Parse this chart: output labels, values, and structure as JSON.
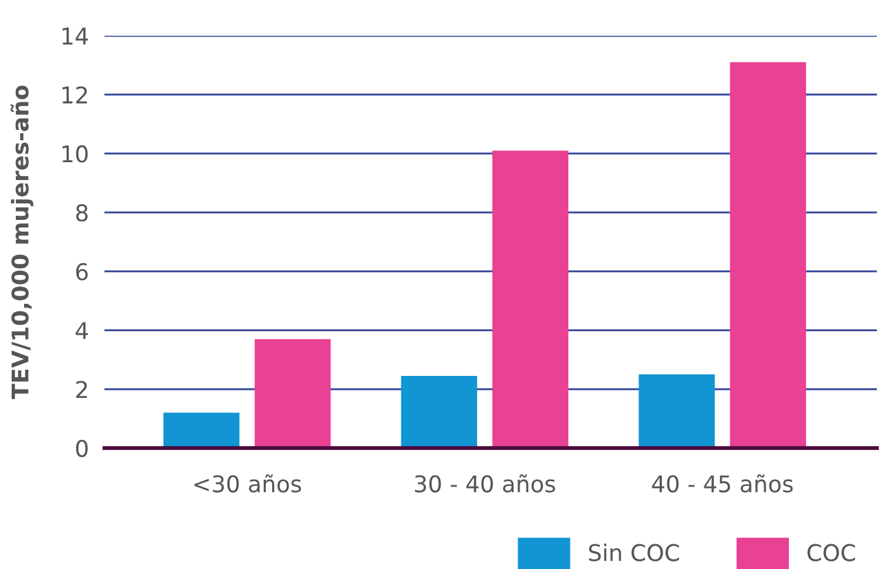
{
  "chart_data": {
    "type": "bar",
    "ylabel": "TEV/10,000 mujeres-año",
    "categories": [
      "<30 años",
      "30 - 40 años",
      "40 - 45 años"
    ],
    "series": [
      {
        "name": "Sin COC",
        "color": "#1195d3",
        "values": [
          1.2,
          2.45,
          2.5
        ]
      },
      {
        "name": "COC",
        "color": "#e94194",
        "values": [
          3.7,
          10.1,
          13.1
        ]
      }
    ],
    "ylim": [
      0,
      14
    ],
    "yticks": [
      0,
      2,
      4,
      6,
      8,
      10,
      12,
      14
    ],
    "grid": "y",
    "legend": "bottom right"
  }
}
